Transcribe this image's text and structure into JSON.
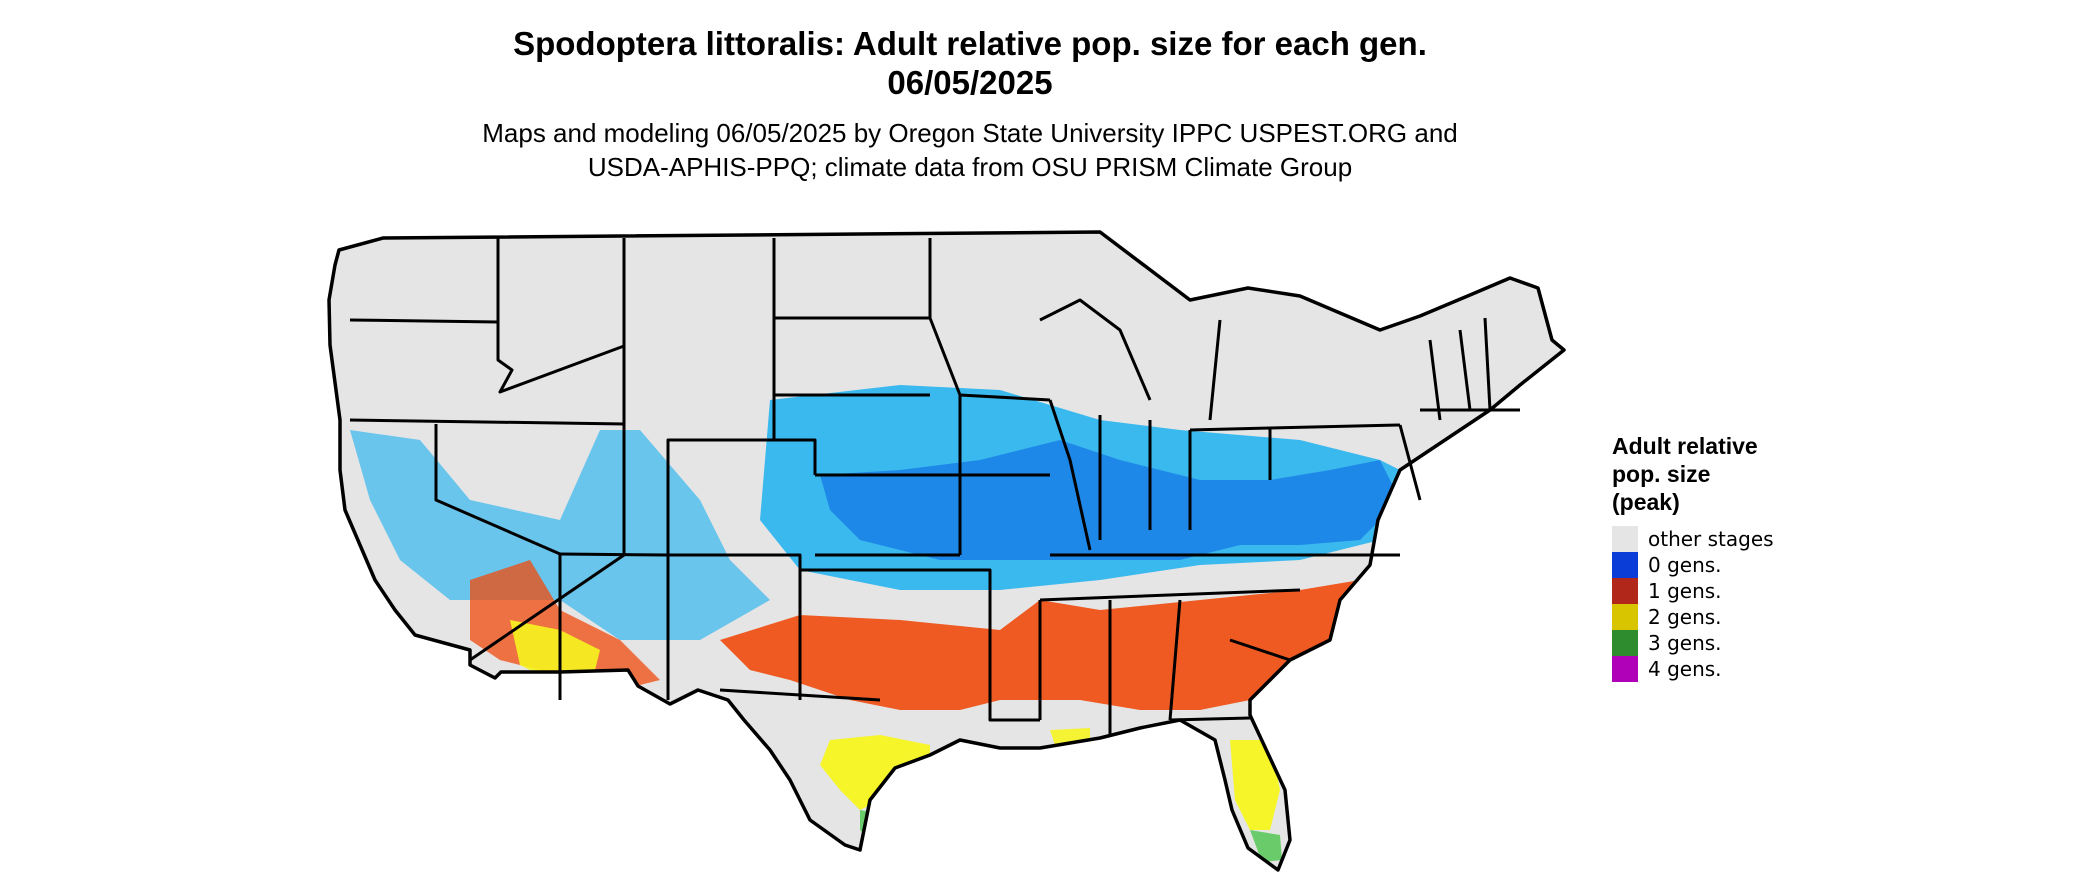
{
  "title": {
    "line1": "Spodoptera littoralis: Adult relative pop. size for each gen.",
    "line2": "06/05/2025"
  },
  "subtitle": {
    "line1": "Maps and modeling 06/05/2025 by Oregon State University IPPC USPEST.ORG and",
    "line2": "USDA-APHIS-PPQ; climate data from OSU PRISM Climate Group"
  },
  "legend": {
    "title_line1": "Adult relative",
    "title_line2": "pop. size",
    "title_line3": "(peak)",
    "items": [
      {
        "label": "other stages",
        "color": "#e5e5e5"
      },
      {
        "label": "0 gens.",
        "color": "#0a3cd8"
      },
      {
        "label": "1 gens.",
        "color": "#b1281a"
      },
      {
        "label": "2 gens.",
        "color": "#d9c400"
      },
      {
        "label": "3 gens.",
        "color": "#2e8b2e"
      },
      {
        "label": "4 gens.",
        "color": "#b000b8"
      }
    ]
  },
  "map_colors": {
    "background": "#e5e5e5",
    "light_blue": "#27b4f0",
    "mid_blue": "#1a7fe6",
    "orange_red": "#f04a0c",
    "yellow": "#f5f520",
    "green": "#5cc85c",
    "border": "#000000"
  }
}
